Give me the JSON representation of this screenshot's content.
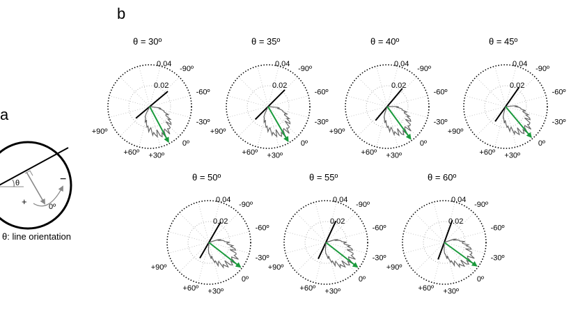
{
  "panel_a": {
    "letter": "a",
    "theta_symbol": "θ",
    "minus_sign": "−",
    "plus_sign": "+",
    "zero_label": "0º",
    "caption": "θ: line orientation"
  },
  "panel_b": {
    "letter": "b",
    "radial_labels": [
      "0.04",
      "0.02"
    ],
    "angle_labels": {
      "m90": "-90º",
      "m60": "-60º",
      "m30": "-30º",
      "zero": "0º",
      "p30": "+30º",
      "p60": "+60º",
      "p90": "+90º"
    },
    "colors": {
      "arrow": "#1a9a3c",
      "outline": "#666666",
      "line": "#000000"
    },
    "plots": [
      {
        "title": "θ = 30º",
        "theta": 30,
        "arrow_deg": 62,
        "arrow_len": 0.95
      },
      {
        "title": "θ = 35º",
        "theta": 35,
        "arrow_deg": 60,
        "arrow_len": 0.95
      },
      {
        "title": "θ = 40º",
        "theta": 40,
        "arrow_deg": 54,
        "arrow_len": 0.95
      },
      {
        "title": "θ = 45º",
        "theta": 45,
        "arrow_deg": 50,
        "arrow_len": 0.95
      },
      {
        "title": "θ = 50º",
        "theta": 50,
        "arrow_deg": 38,
        "arrow_len": 0.95
      },
      {
        "title": "θ = 55º",
        "theta": 55,
        "arrow_deg": 38,
        "arrow_len": 0.95
      },
      {
        "title": "θ = 60º",
        "theta": 60,
        "arrow_deg": 36,
        "arrow_len": 0.95
      }
    ]
  }
}
